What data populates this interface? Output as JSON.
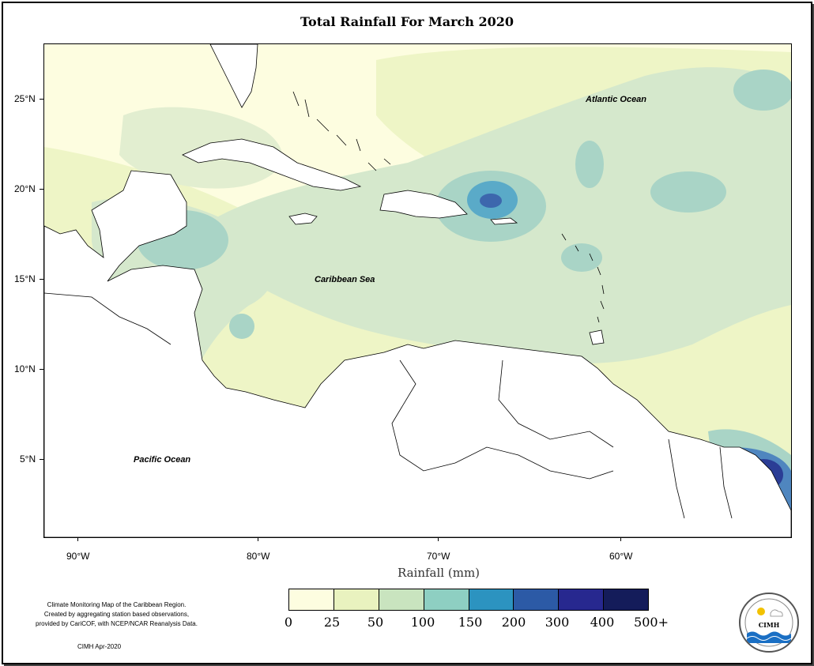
{
  "title": "Total Rainfall For March 2020",
  "map": {
    "lat_labels": [
      "25°N",
      "20°N",
      "15°N",
      "10°N",
      "5°N"
    ],
    "lon_labels": [
      "90°W",
      "80°W",
      "70°W",
      "60°W"
    ],
    "places": {
      "atlantic": "Atlantic Ocean",
      "caribbean": "Caribbean Sea",
      "pacific": "Pacific Ocean"
    }
  },
  "xlabel": "Rainfall (mm)",
  "legend": {
    "colors": [
      "#fdfde0",
      "#e9f2bf",
      "#c9e4bf",
      "#8ecfc2",
      "#2c93c0",
      "#2c5aa6",
      "#27288f",
      "#141c5a"
    ],
    "labels": [
      "0",
      "25",
      "50",
      "100",
      "150",
      "200",
      "300",
      "400",
      "500+"
    ]
  },
  "note": {
    "line1": "Climate Monitoring Map of the Caribbean Region.",
    "line2": "Created by aggregating station based observations,",
    "line3": "provided by CariCOF, with NCEP/NCAR Reanalysis Data."
  },
  "credit": "CIMH Apr-2020",
  "logo": {
    "name": "CIMH",
    "ring": "Caribbean Institute for Meteorology and Hydrology"
  }
}
